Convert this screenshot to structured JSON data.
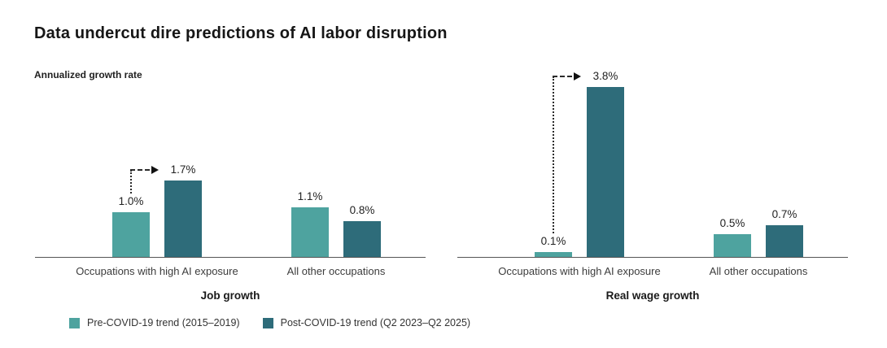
{
  "title": "Data undercut dire predictions of AI labor disruption",
  "subtitle": "Annualized growth rate",
  "colors": {
    "pre_covid": "#4ea39f",
    "post_covid": "#2e6c7a",
    "axis_line": "#555555",
    "arrow": "#2b2b2b",
    "title_text": "#161616",
    "label_text": "#3c3c3c"
  },
  "legend": [
    {
      "label": "Pre-COVID-19 trend (2015–2019)",
      "color": "#4ea39f"
    },
    {
      "label": "Post-COVID-19 trend (Q2 2023–Q2 2025)",
      "color": "#2e6c7a"
    }
  ],
  "chart_data": [
    {
      "type": "bar",
      "title": "Job growth",
      "unit": "%",
      "categories": [
        "Occupations with high AI exposure",
        "All other occupations"
      ],
      "series": [
        {
          "name": "Pre-COVID-19 trend (2015–2019)",
          "values": [
            1.0,
            1.1
          ],
          "labels": [
            "1.0%",
            "1.1%"
          ]
        },
        {
          "name": "Post-COVID-19 trend (Q2 2023–Q2 2025)",
          "values": [
            1.7,
            0.8
          ],
          "labels": [
            "1.7%",
            "0.8%"
          ]
        }
      ],
      "ylim": [
        0,
        4.0
      ],
      "grid": false,
      "annotation_arrow": {
        "category_index": 0,
        "from_series": 0,
        "to_series": 1
      }
    },
    {
      "type": "bar",
      "title": "Real wage growth",
      "unit": "%",
      "categories": [
        "Occupations with high AI exposure",
        "All other occupations"
      ],
      "series": [
        {
          "name": "Pre-COVID-19 trend (2015–2019)",
          "values": [
            0.1,
            0.5
          ],
          "labels": [
            "0.1%",
            "0.5%"
          ]
        },
        {
          "name": "Post-COVID-19 trend (Q2 2023–Q2 2025)",
          "values": [
            3.8,
            0.7
          ],
          "labels": [
            "3.8%",
            "0.7%"
          ]
        }
      ],
      "ylim": [
        0,
        4.0
      ],
      "grid": false,
      "annotation_arrow": {
        "category_index": 0,
        "from_series": 0,
        "to_series": 1
      }
    }
  ]
}
